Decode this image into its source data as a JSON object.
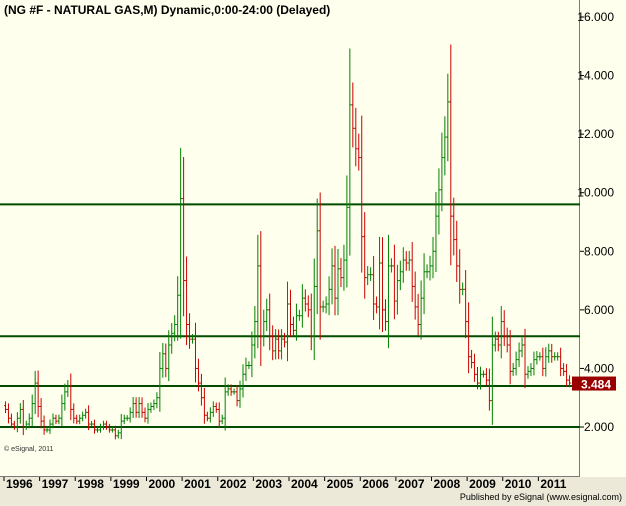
{
  "chart_data": {
    "type": "ohlc",
    "title": "(NG #F - NATURAL GAS,M) Dynamic,0:00-24:00 (Delayed)",
    "ylim": [
      0.5,
      16.5
    ],
    "y_ticks": [
      "2.000",
      "4.000",
      "6.000",
      "8.000",
      "10.000",
      "12.000",
      "14.000",
      "16.000"
    ],
    "x_ticks": [
      "1996",
      "1997",
      "1998",
      "1999",
      "2000",
      "2001",
      "2002",
      "2003",
      "2004",
      "2005",
      "2006",
      "2007",
      "2008",
      "2009",
      "2010",
      "2011"
    ],
    "horizontal_lines": [
      9.6,
      5.1,
      3.4,
      2.0
    ],
    "last_price": "3.484",
    "colors": {
      "up": "#008000",
      "down": "#cc0000",
      "hline": "#004d00",
      "last_price_bg": "#990000"
    },
    "year_start": 1996,
    "monthly_closes": [
      2.6,
      2.3,
      2.1,
      2.0,
      2.3,
      2.6,
      2.0,
      2.1,
      2.3,
      2.8,
      3.5,
      2.7,
      2.2,
      1.9,
      1.9,
      2.1,
      2.3,
      2.2,
      2.3,
      2.8,
      3.2,
      3.4,
      2.6,
      2.3,
      2.2,
      2.3,
      2.4,
      2.5,
      2.1,
      2.1,
      1.9,
      1.9,
      2.0,
      2.1,
      2.0,
      1.9,
      1.9,
      1.7,
      1.8,
      2.2,
      2.3,
      2.3,
      2.5,
      2.8,
      2.5,
      2.8,
      2.5,
      2.3,
      2.6,
      2.7,
      2.8,
      3.0,
      4.0,
      4.5,
      4.0,
      4.8,
      5.2,
      5.5,
      6.5,
      9.8,
      7.0,
      5.5,
      5.0,
      5.0,
      4.0,
      3.5,
      3.0,
      2.4,
      2.3,
      2.5,
      2.7,
      2.6,
      2.2,
      2.3,
      3.2,
      3.3,
      3.2,
      3.2,
      2.9,
      3.3,
      3.8,
      4.1,
      4.1,
      4.8,
      5.6,
      7.5,
      5.1,
      5.6,
      6.0,
      5.1,
      4.6,
      5.0,
      4.6,
      5.0,
      4.9,
      6.2,
      5.5,
      5.3,
      5.8,
      5.8,
      6.4,
      6.2,
      6.0,
      5.1,
      6.8,
      8.7,
      6.1,
      6.1,
      6.2,
      6.7,
      7.5,
      6.4,
      7.4,
      7.1,
      7.7,
      9.5,
      13.0,
      12.2,
      11.5,
      11.2,
      8.5,
      7.1,
      7.2,
      7.2,
      6.2,
      6.1,
      7.6,
      6.0,
      5.6,
      7.5,
      7.5,
      6.3,
      7.0,
      7.3,
      7.7,
      7.6,
      7.7,
      6.8,
      6.1,
      5.5,
      6.4,
      7.3,
      7.3,
      7.5,
      8.0,
      9.2,
      10.1,
      11.2,
      11.9,
      13.1,
      9.2,
      8.4,
      7.5,
      6.7,
      6.7,
      5.6,
      4.4,
      4.2,
      3.8,
      3.5,
      3.8,
      3.8,
      3.6,
      2.9,
      4.8,
      5.0,
      4.8,
      5.6,
      5.1,
      4.8,
      3.9,
      4.0,
      4.3,
      4.6,
      4.8,
      3.8,
      3.9,
      4.0,
      4.3,
      4.4,
      4.4,
      4.0,
      4.4,
      4.6,
      4.4,
      4.4,
      4.4,
      4.0,
      3.9,
      3.6,
      3.5
    ]
  }
}
